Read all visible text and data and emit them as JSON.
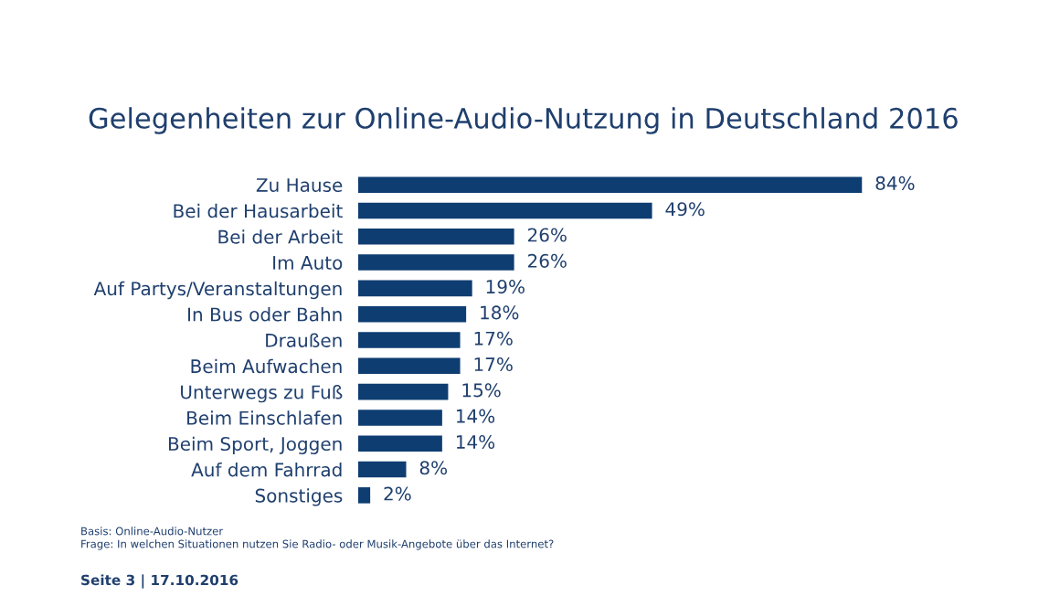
{
  "chart_data": {
    "type": "bar",
    "orientation": "horizontal",
    "title": "Gelegenheiten zur Online-Audio-Nutzung in Deutschland 2016",
    "categories": [
      "Zu Hause",
      "Bei der Hausarbeit",
      "Bei der Arbeit",
      "Im Auto",
      "Auf Partys/Veranstaltungen",
      "In Bus oder Bahn",
      "Draußen",
      "Beim Aufwachen",
      "Unterwegs zu Fuß",
      "Beim Einschlafen",
      "Beim Sport, Joggen",
      "Auf dem Fahrrad",
      "Sonstiges"
    ],
    "values": [
      84,
      49,
      26,
      26,
      19,
      18,
      17,
      17,
      15,
      14,
      14,
      8,
      2
    ],
    "value_labels": [
      "84%",
      "49%",
      "26%",
      "26%",
      "19%",
      "18%",
      "17%",
      "17%",
      "15%",
      "14%",
      "14%",
      "8%",
      "2%"
    ],
    "color": "#0e3d72",
    "annotations": [
      "Basis: Online-Audio-Nutzer",
      "Frage: In welchen Situationen nutzen Sie Radio- oder Musik-Angebote über das Internet?",
      "Seite 3 | 17.10.2016"
    ]
  }
}
